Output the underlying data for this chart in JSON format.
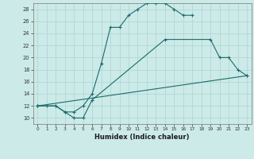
{
  "xlabel": "Humidex (Indice chaleur)",
  "ylabel": "",
  "bg_color": "#cceae8",
  "grid_color": "#b0d8d5",
  "line_color": "#1a6b6b",
  "xlim": [
    -0.5,
    23.5
  ],
  "ylim": [
    9,
    29
  ],
  "xticks": [
    0,
    1,
    2,
    3,
    4,
    5,
    6,
    7,
    8,
    9,
    10,
    11,
    12,
    13,
    14,
    15,
    16,
    17,
    18,
    19,
    20,
    21,
    22,
    23
  ],
  "yticks": [
    10,
    12,
    14,
    16,
    18,
    20,
    22,
    24,
    26,
    28
  ],
  "line1_x": [
    0,
    1,
    2,
    3,
    4,
    5,
    6,
    7,
    8,
    9,
    10,
    11,
    12,
    13,
    14,
    15,
    16,
    17
  ],
  "line1_y": [
    12,
    12,
    12,
    11,
    11,
    12,
    14,
    19,
    25,
    25,
    27,
    28,
    29,
    29,
    29,
    28,
    27,
    27
  ],
  "line2_x": [
    0,
    2,
    3,
    4,
    5,
    6,
    14,
    19,
    20,
    21,
    22,
    23
  ],
  "line2_y": [
    12,
    12,
    11,
    10,
    10,
    13,
    23,
    23,
    20,
    20,
    18,
    17
  ],
  "line3_x": [
    0,
    23
  ],
  "line3_y": [
    12,
    17
  ]
}
